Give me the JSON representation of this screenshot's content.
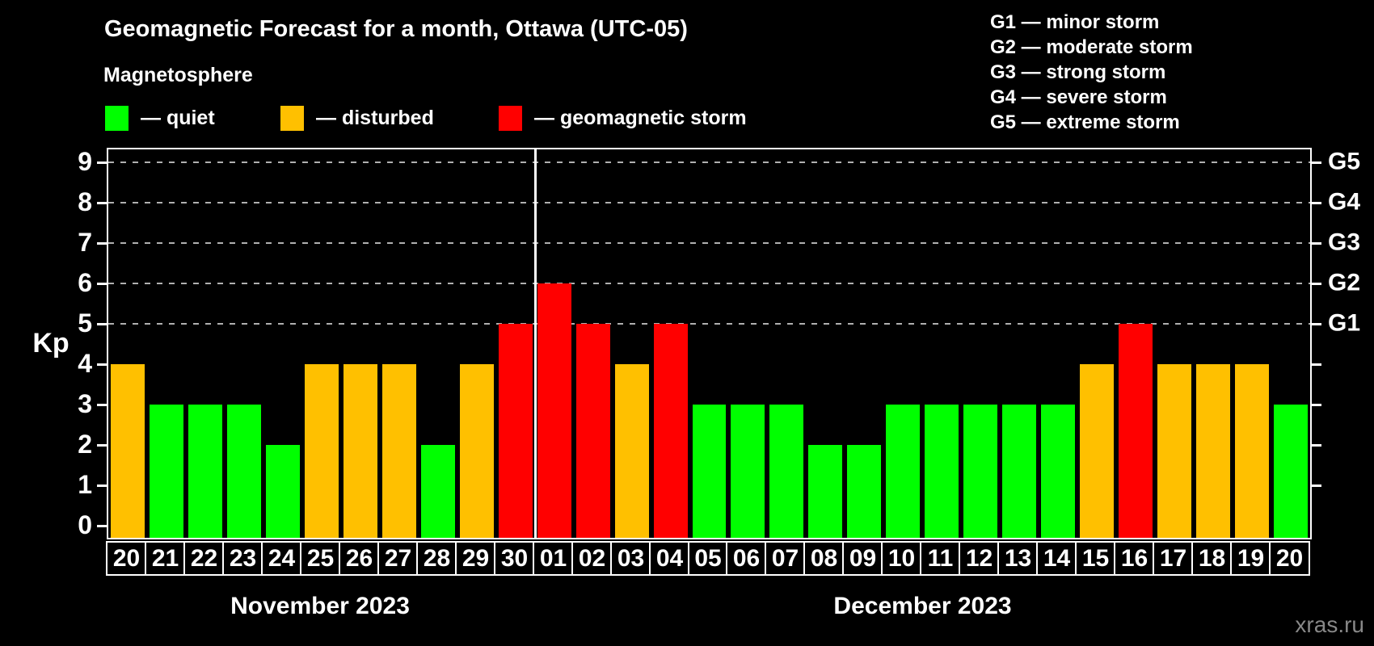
{
  "title": "Geomagnetic Forecast for a month, Ottawa (UTC-05)",
  "legend": {
    "heading": "Magnetosphere",
    "items": [
      {
        "key": "quiet",
        "label": "— quiet",
        "color": "#00ff00"
      },
      {
        "key": "disturbed",
        "label": "— disturbed",
        "color": "#ffc000"
      },
      {
        "key": "storm",
        "label": "— geomagnetic storm",
        "color": "#ff0000"
      }
    ]
  },
  "g_scale_legend": [
    "G1 — minor storm",
    "G2 — moderate storm",
    "G3 — strong storm",
    "G4 — severe storm",
    "G5 — extreme storm"
  ],
  "watermark": "xras.ru",
  "colors": {
    "background": "#000000",
    "text": "#ffffff",
    "quiet": "#00ff00",
    "disturbed": "#ffc000",
    "storm": "#ff0000",
    "grid": "#b0b0b0",
    "frame": "#ffffff",
    "watermark": "#888888"
  },
  "chart_data": {
    "type": "bar",
    "title": "Geomagnetic Forecast for a month, Ottawa (UTC-05)",
    "ylabel": "Kp",
    "ylim": [
      0,
      9
    ],
    "yticks": [
      0,
      1,
      2,
      3,
      4,
      5,
      6,
      7,
      8,
      9
    ],
    "gridlines_at_kp": [
      5,
      6,
      7,
      8,
      9
    ],
    "legend_position": "top",
    "right_axis": [
      {
        "kp": 5,
        "label": "G1"
      },
      {
        "kp": 6,
        "label": "G2"
      },
      {
        "kp": 7,
        "label": "G3"
      },
      {
        "kp": 8,
        "label": "G4"
      },
      {
        "kp": 9,
        "label": "G5"
      }
    ],
    "months": [
      {
        "label": "November 2023",
        "days": 11
      },
      {
        "label": "December 2023",
        "days": 20
      }
    ],
    "categories": [
      "20",
      "21",
      "22",
      "23",
      "24",
      "25",
      "26",
      "27",
      "28",
      "29",
      "30",
      "01",
      "02",
      "03",
      "04",
      "05",
      "06",
      "07",
      "08",
      "09",
      "10",
      "11",
      "12",
      "13",
      "14",
      "15",
      "16",
      "17",
      "18",
      "19",
      "20"
    ],
    "values": [
      4,
      3,
      3,
      3,
      2,
      4,
      4,
      4,
      2,
      4,
      5,
      6,
      5,
      4,
      5,
      3,
      3,
      3,
      2,
      2,
      3,
      3,
      3,
      3,
      3,
      4,
      5,
      4,
      4,
      4,
      3
    ],
    "statuses": [
      "disturbed",
      "quiet",
      "quiet",
      "quiet",
      "quiet",
      "disturbed",
      "disturbed",
      "disturbed",
      "quiet",
      "disturbed",
      "storm",
      "storm",
      "storm",
      "disturbed",
      "storm",
      "quiet",
      "quiet",
      "quiet",
      "quiet",
      "quiet",
      "quiet",
      "quiet",
      "quiet",
      "quiet",
      "quiet",
      "disturbed",
      "storm",
      "disturbed",
      "disturbed",
      "disturbed",
      "quiet"
    ]
  }
}
